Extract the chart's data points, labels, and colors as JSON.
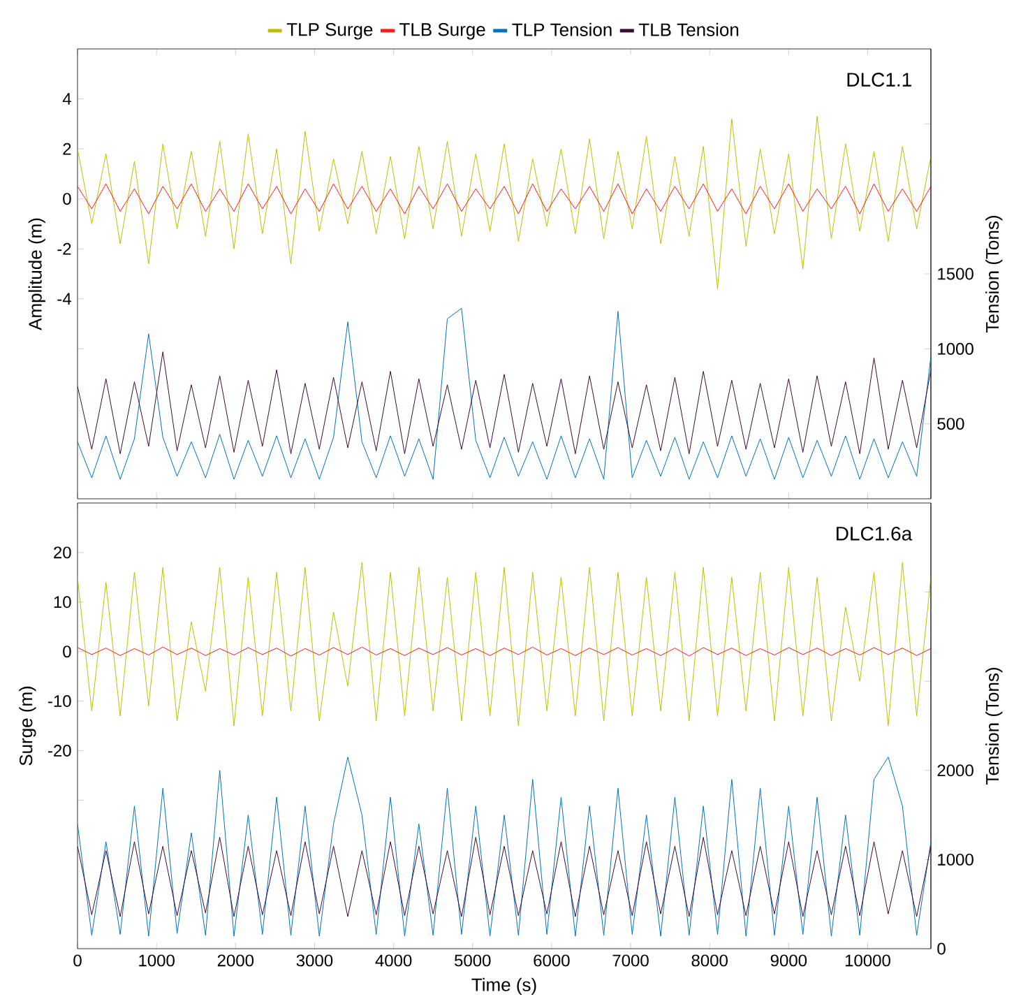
{
  "chart_data": [
    {
      "type": "line",
      "ylabel": "Amplitude (m)",
      "y2label": "Tension (Tons)",
      "annotations": [
        "DLC1.1"
      ],
      "legend": "top",
      "tick_labels": "y",
      "x": [
        0,
        180,
        360,
        540,
        720,
        900,
        1080,
        1260,
        1440,
        1620,
        1800,
        1980,
        2160,
        2340,
        2520,
        2700,
        2880,
        3060,
        3240,
        3420,
        3600,
        3780,
        3960,
        4140,
        4320,
        4500,
        4680,
        4860,
        5040,
        5220,
        5400,
        5580,
        5760,
        5940,
        6120,
        6300,
        6480,
        6660,
        6840,
        7020,
        7200,
        7380,
        7560,
        7740,
        7920,
        8100,
        8280,
        8460,
        8640,
        8820,
        9000,
        9180,
        9360,
        9540,
        9720,
        9900,
        10080,
        10260,
        10440,
        10620,
        10800
      ],
      "xlim": [
        0,
        10800
      ],
      "xticks": [
        0,
        1000,
        2000,
        3000,
        4000,
        5000,
        6000,
        7000,
        8000,
        9000,
        10000
      ],
      "ylim": [
        -12,
        6
      ],
      "yticks": [
        {
          "value": -6,
          "label": null
        },
        -4,
        -2,
        0,
        2,
        4
      ],
      "y2lim": [
        0,
        3000
      ],
      "y2ticks": [
        500,
        1000,
        1500,
        {
          "value": 2500,
          "label": null
        }
      ],
      "series": [
        {
          "name": "TLP Surge",
          "color": "#bfbf00",
          "values": [
            2.0,
            -1.0,
            1.8,
            -1.8,
            1.5,
            -2.6,
            2.2,
            -1.2,
            1.9,
            -1.5,
            2.3,
            -2.0,
            2.6,
            -1.4,
            2.0,
            -2.6,
            2.7,
            -1.3,
            1.6,
            -1.0,
            1.9,
            -1.4,
            1.7,
            -1.6,
            2.1,
            -1.2,
            2.3,
            -1.5,
            1.8,
            -1.3,
            2.2,
            -1.7,
            1.6,
            -1.1,
            2.0,
            -1.4,
            2.4,
            -1.6,
            1.9,
            -1.2,
            2.5,
            -1.8,
            1.7,
            -1.5,
            2.1,
            -3.6,
            3.2,
            -1.9,
            2.0,
            -1.4,
            1.8,
            -2.8,
            3.3,
            -1.6,
            2.2,
            -1.3,
            1.9,
            -1.7,
            2.1,
            -1.2,
            1.7
          ]
        },
        {
          "name": "TLB Surge",
          "color": "#ff1a1a",
          "values": [
            0.5,
            -0.4,
            0.6,
            -0.5,
            0.4,
            -0.6,
            0.5,
            -0.4,
            0.6,
            -0.5,
            0.4,
            -0.5,
            0.6,
            -0.4,
            0.5,
            -0.6,
            0.4,
            -0.5,
            0.6,
            -0.4,
            0.5,
            -0.5,
            0.4,
            -0.6,
            0.5,
            -0.4,
            0.6,
            -0.5,
            0.4,
            -0.4,
            0.5,
            -0.6,
            0.6,
            -0.5,
            0.4,
            -0.4,
            0.5,
            -0.5,
            0.6,
            -0.6,
            0.4,
            -0.5,
            0.5,
            -0.4,
            0.6,
            -0.5,
            0.4,
            -0.6,
            0.5,
            -0.4,
            0.6,
            -0.5,
            0.4,
            -0.4,
            0.5,
            -0.6,
            0.6,
            -0.5,
            0.4,
            -0.5,
            0.5
          ]
        },
        {
          "name": "TLP Tension",
          "color": "#0072bd",
          "axis": "y2",
          "values": [
            380,
            140,
            420,
            130,
            400,
            1100,
            410,
            150,
            380,
            140,
            430,
            130,
            390,
            150,
            420,
            140,
            400,
            130,
            410,
            1180,
            380,
            140,
            420,
            150,
            400,
            130,
            1200,
            1270,
            390,
            140,
            410,
            150,
            380,
            130,
            420,
            140,
            400,
            130,
            1250,
            140,
            390,
            150,
            410,
            130,
            380,
            140,
            420,
            150,
            400,
            130,
            410,
            140,
            390,
            150,
            420,
            130,
            400,
            140,
            380,
            150,
            950
          ]
        },
        {
          "name": "TLB Tension",
          "color": "#3b0a35",
          "axis": "y2",
          "values": [
            750,
            330,
            800,
            300,
            780,
            350,
            980,
            320,
            760,
            340,
            820,
            310,
            790,
            350,
            860,
            300,
            770,
            330,
            810,
            340,
            780,
            320,
            850,
            300,
            800,
            350,
            760,
            330,
            790,
            340,
            830,
            310,
            770,
            350,
            800,
            300,
            820,
            330,
            780,
            340,
            760,
            320,
            810,
            300,
            850,
            350,
            790,
            330,
            770,
            340,
            800,
            310,
            820,
            350,
            780,
            300,
            940,
            330,
            790,
            340,
            860
          ]
        }
      ]
    },
    {
      "type": "line",
      "xlabel": "Time (s)",
      "ylabel": "Surge (m)",
      "y2label": "Tension (Tons)",
      "annotations": [
        "DLC1.6a"
      ],
      "x": [
        0,
        180,
        360,
        540,
        720,
        900,
        1080,
        1260,
        1440,
        1620,
        1800,
        1980,
        2160,
        2340,
        2520,
        2700,
        2880,
        3060,
        3240,
        3420,
        3600,
        3780,
        3960,
        4140,
        4320,
        4500,
        4680,
        4860,
        5040,
        5220,
        5400,
        5580,
        5760,
        5940,
        6120,
        6300,
        6480,
        6660,
        6840,
        7020,
        7200,
        7380,
        7560,
        7740,
        7920,
        8100,
        8280,
        8460,
        8640,
        8820,
        9000,
        9180,
        9360,
        9540,
        9720,
        9900,
        10080,
        10260,
        10440,
        10620,
        10800
      ],
      "xlim": [
        0,
        10800
      ],
      "xticks": [
        0,
        1000,
        2000,
        3000,
        4000,
        5000,
        6000,
        7000,
        8000,
        9000,
        10000
      ],
      "ylim": [
        -60,
        30
      ],
      "yticks": [
        {
          "value": -30,
          "label": null
        },
        -20,
        -10,
        0,
        10,
        20
      ],
      "y2lim": [
        0,
        5000
      ],
      "y2ticks": [
        0,
        1000,
        2000,
        {
          "value": 3000,
          "label": null
        },
        {
          "value": 4000,
          "label": null
        }
      ],
      "series": [
        {
          "color": "#bfbf00",
          "values": [
            15,
            -12,
            14,
            -13,
            16,
            -11,
            17,
            -14,
            6,
            -8,
            17,
            -15,
            15,
            -13,
            16,
            -12,
            17,
            -14,
            8,
            -7,
            18,
            -14,
            16,
            -13,
            17,
            -12,
            15,
            -14,
            16,
            -13,
            17,
            -15,
            16,
            -12,
            15,
            -13,
            17,
            -14,
            16,
            -13,
            15,
            -12,
            16,
            -14,
            17,
            -13,
            15,
            -12,
            16,
            -14,
            17,
            -13,
            15,
            -14,
            9,
            -6,
            16,
            -15,
            18,
            -13,
            15
          ]
        },
        {
          "color": "#ff1a1a",
          "values": [
            0.8,
            -0.6,
            0.7,
            -0.8,
            0.6,
            -0.7,
            0.9,
            -0.6,
            0.7,
            -0.8,
            0.6,
            -0.7,
            0.8,
            -0.6,
            0.7,
            -0.9,
            0.6,
            -0.7,
            0.8,
            -0.6,
            0.9,
            -0.7,
            0.6,
            -0.8,
            0.7,
            -0.6,
            0.8,
            -0.7,
            0.6,
            -0.8,
            0.7,
            -0.6,
            0.9,
            -0.7,
            0.6,
            -0.8,
            0.7,
            -0.6,
            0.8,
            -0.7,
            0.6,
            -0.8,
            0.7,
            -0.9,
            0.8,
            -0.6,
            0.7,
            -0.8,
            0.6,
            -0.7,
            0.8,
            -0.6,
            0.7,
            -0.8,
            0.6,
            -0.7,
            0.8,
            -0.6,
            0.7,
            -0.8,
            0.6
          ]
        },
        {
          "color": "#0072bd",
          "axis": "y2",
          "values": [
            1400,
            150,
            1200,
            160,
            1600,
            140,
            1800,
            170,
            1300,
            150,
            2000,
            140,
            1500,
            160,
            1700,
            150,
            1600,
            140,
            1400,
            2150,
            1500,
            160,
            1700,
            140,
            1400,
            150,
            1800,
            160,
            1600,
            140,
            1500,
            150,
            1900,
            160,
            1700,
            140,
            1600,
            150,
            1800,
            160,
            1500,
            140,
            1700,
            150,
            1600,
            160,
            1900,
            140,
            1800,
            150,
            1600,
            160,
            1700,
            140,
            1500,
            150,
            1900,
            2150,
            1600,
            150,
            1200
          ]
        },
        {
          "color": "#3b0a35",
          "axis": "y2",
          "values": [
            1150,
            380,
            1100,
            360,
            1200,
            390,
            1150,
            370,
            1100,
            400,
            1250,
            360,
            1150,
            380,
            1100,
            370,
            1200,
            390,
            1150,
            360,
            1100,
            380,
            1200,
            370,
            1150,
            390,
            1100,
            360,
            1250,
            380,
            1150,
            370,
            1100,
            390,
            1200,
            360,
            1150,
            380,
            1100,
            370,
            1200,
            390,
            1150,
            360,
            1250,
            380,
            1100,
            370,
            1150,
            390,
            1200,
            360,
            1100,
            380,
            1150,
            370,
            1200,
            390,
            1100,
            360,
            1150
          ]
        }
      ]
    }
  ]
}
